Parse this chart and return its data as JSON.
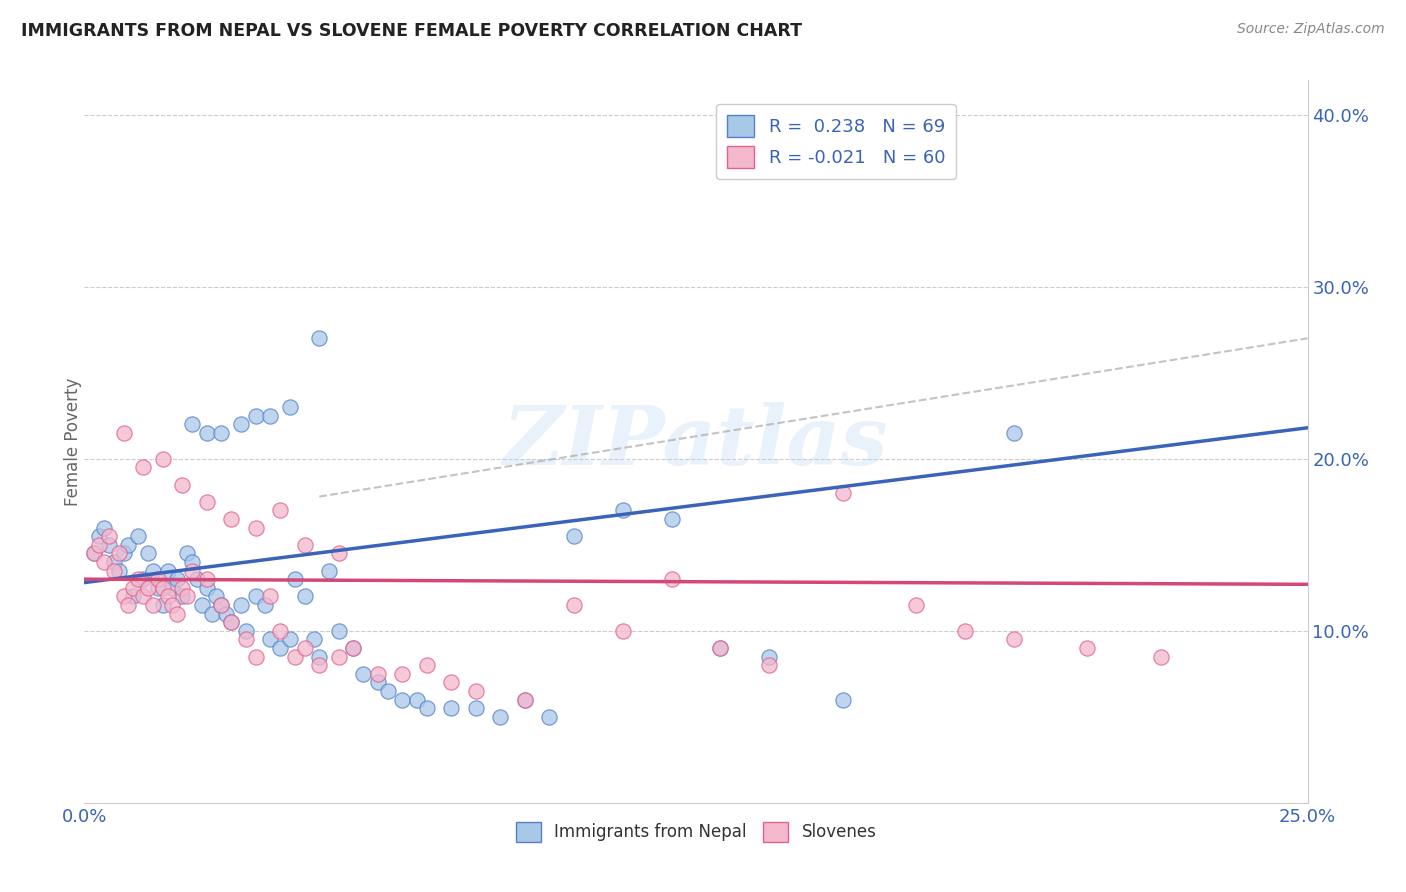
{
  "title": "IMMIGRANTS FROM NEPAL VS SLOVENE FEMALE POVERTY CORRELATION CHART",
  "source": "Source: ZipAtlas.com",
  "ylabel": "Female Poverty",
  "legend_labels": [
    "Immigrants from Nepal",
    "Slovenes"
  ],
  "r_values": [
    0.238,
    -0.021
  ],
  "n_values": [
    69,
    60
  ],
  "xlim": [
    0.0,
    0.25
  ],
  "ylim": [
    0.0,
    0.42
  ],
  "yticks": [
    0.1,
    0.2,
    0.3,
    0.4
  ],
  "ytick_labels": [
    "10.0%",
    "20.0%",
    "30.0%",
    "40.0%"
  ],
  "blue_color": "#A8C8E8",
  "pink_color": "#F4B8CC",
  "blue_edge_color": "#5580C8",
  "pink_edge_color": "#E06090",
  "blue_line_color": "#3A64B8",
  "pink_line_color": "#D44878",
  "watermark": "ZIPatlas",
  "blue_line_x": [
    0.0,
    0.25
  ],
  "blue_line_y": [
    0.128,
    0.218
  ],
  "pink_line_x": [
    0.0,
    0.25
  ],
  "pink_line_y": [
    0.13,
    0.127
  ],
  "gray_line_x": [
    0.048,
    0.25
  ],
  "gray_line_y": [
    0.178,
    0.27
  ],
  "blue_scatter_x": [
    0.002,
    0.003,
    0.004,
    0.005,
    0.006,
    0.007,
    0.008,
    0.009,
    0.01,
    0.011,
    0.012,
    0.013,
    0.014,
    0.015,
    0.016,
    0.017,
    0.018,
    0.019,
    0.02,
    0.021,
    0.022,
    0.023,
    0.024,
    0.025,
    0.026,
    0.027,
    0.028,
    0.029,
    0.03,
    0.032,
    0.033,
    0.035,
    0.037,
    0.038,
    0.04,
    0.042,
    0.043,
    0.045,
    0.047,
    0.048,
    0.05,
    0.052,
    0.055,
    0.057,
    0.06,
    0.062,
    0.065,
    0.068,
    0.07,
    0.075,
    0.08,
    0.085,
    0.09,
    0.095,
    0.1,
    0.11,
    0.12,
    0.13,
    0.14,
    0.155,
    0.022,
    0.025,
    0.028,
    0.032,
    0.035,
    0.038,
    0.042,
    0.048,
    0.19
  ],
  "blue_scatter_y": [
    0.145,
    0.155,
    0.16,
    0.15,
    0.14,
    0.135,
    0.145,
    0.15,
    0.12,
    0.155,
    0.13,
    0.145,
    0.135,
    0.125,
    0.115,
    0.135,
    0.125,
    0.13,
    0.12,
    0.145,
    0.14,
    0.13,
    0.115,
    0.125,
    0.11,
    0.12,
    0.115,
    0.11,
    0.105,
    0.115,
    0.1,
    0.12,
    0.115,
    0.095,
    0.09,
    0.095,
    0.13,
    0.12,
    0.095,
    0.085,
    0.135,
    0.1,
    0.09,
    0.075,
    0.07,
    0.065,
    0.06,
    0.06,
    0.055,
    0.055,
    0.055,
    0.05,
    0.06,
    0.05,
    0.155,
    0.17,
    0.165,
    0.09,
    0.085,
    0.06,
    0.22,
    0.215,
    0.215,
    0.22,
    0.225,
    0.225,
    0.23,
    0.27,
    0.215
  ],
  "pink_scatter_x": [
    0.002,
    0.003,
    0.004,
    0.005,
    0.006,
    0.007,
    0.008,
    0.009,
    0.01,
    0.011,
    0.012,
    0.013,
    0.014,
    0.015,
    0.016,
    0.017,
    0.018,
    0.019,
    0.02,
    0.021,
    0.022,
    0.025,
    0.028,
    0.03,
    0.033,
    0.035,
    0.038,
    0.04,
    0.043,
    0.045,
    0.048,
    0.052,
    0.055,
    0.06,
    0.065,
    0.07,
    0.075,
    0.08,
    0.09,
    0.1,
    0.11,
    0.12,
    0.13,
    0.14,
    0.155,
    0.17,
    0.18,
    0.19,
    0.205,
    0.22,
    0.008,
    0.012,
    0.016,
    0.02,
    0.025,
    0.03,
    0.035,
    0.04,
    0.045,
    0.052
  ],
  "pink_scatter_y": [
    0.145,
    0.15,
    0.14,
    0.155,
    0.135,
    0.145,
    0.12,
    0.115,
    0.125,
    0.13,
    0.12,
    0.125,
    0.115,
    0.13,
    0.125,
    0.12,
    0.115,
    0.11,
    0.125,
    0.12,
    0.135,
    0.13,
    0.115,
    0.105,
    0.095,
    0.085,
    0.12,
    0.1,
    0.085,
    0.09,
    0.08,
    0.085,
    0.09,
    0.075,
    0.075,
    0.08,
    0.07,
    0.065,
    0.06,
    0.115,
    0.1,
    0.13,
    0.09,
    0.08,
    0.18,
    0.115,
    0.1,
    0.095,
    0.09,
    0.085,
    0.215,
    0.195,
    0.2,
    0.185,
    0.175,
    0.165,
    0.16,
    0.17,
    0.15,
    0.145
  ]
}
